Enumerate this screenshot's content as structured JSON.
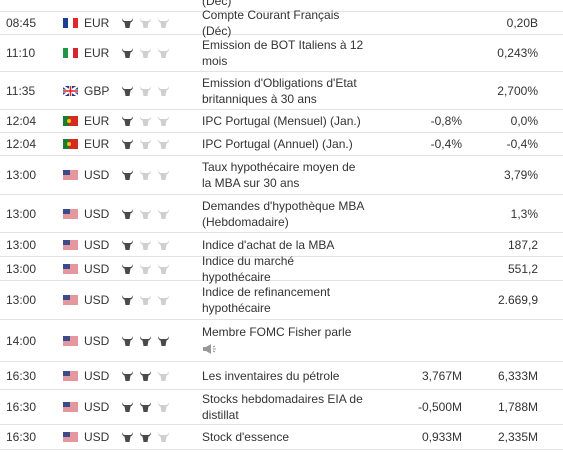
{
  "header_fragment": "(Déc)",
  "rows": [
    {
      "time": "08:45",
      "currency": "EUR",
      "event": "Compte Courant Français (Déc)",
      "forecast": "",
      "previous": "0,20B"
    },
    {
      "time": "11:10",
      "currency": "EUR",
      "event": "Emission de BOT Italiens à 12 mois",
      "forecast": "",
      "previous": "0,243%"
    },
    {
      "time": "11:35",
      "currency": "GBP",
      "event": "Emission d'Obligations d'Etat britanniques à 30 ans",
      "forecast": "",
      "previous": "2,700%"
    },
    {
      "time": "12:04",
      "currency": "EUR",
      "event": "IPC Portugal (Mensuel) (Jan.)",
      "forecast": "-0,8%",
      "previous": "0,0%"
    },
    {
      "time": "12:04",
      "currency": "EUR",
      "event": "IPC Portugal (Annuel) (Jan.)",
      "forecast": "-0,4%",
      "previous": "-0,4%"
    },
    {
      "time": "13:00",
      "currency": "USD",
      "event": "Taux hypothécaire moyen de la MBA sur 30 ans",
      "forecast": "",
      "previous": "3,79%"
    },
    {
      "time": "13:00",
      "currency": "USD",
      "event": "Demandes d'hypothèque MBA (Hebdomadaire)",
      "forecast": "",
      "previous": "1,3%"
    },
    {
      "time": "13:00",
      "currency": "USD",
      "event": "Indice d'achat de la MBA",
      "forecast": "",
      "previous": "187,2"
    },
    {
      "time": "13:00",
      "currency": "USD",
      "event": "Indice du marché hypothécaire",
      "forecast": "",
      "previous": "551,2"
    },
    {
      "time": "13:00",
      "currency": "USD",
      "event": "Indice de refinancement hypothécaire",
      "forecast": "",
      "previous": "2.669,9"
    },
    {
      "time": "14:00",
      "currency": "USD",
      "event": "Membre FOMC Fisher parle",
      "forecast": "",
      "previous": ""
    },
    {
      "time": "16:30",
      "currency": "USD",
      "event": "Les inventaires du pétrole",
      "forecast": "3,767M",
      "previous": "6,333M"
    },
    {
      "time": "16:30",
      "currency": "USD",
      "event": "Stocks hebdomadaires EIA de distillat",
      "forecast": "-0,500M",
      "previous": "1,788M"
    },
    {
      "time": "16:30",
      "currency": "USD",
      "event": "Stock d'essence",
      "forecast": "0,933M",
      "previous": "2,335M"
    }
  ]
}
